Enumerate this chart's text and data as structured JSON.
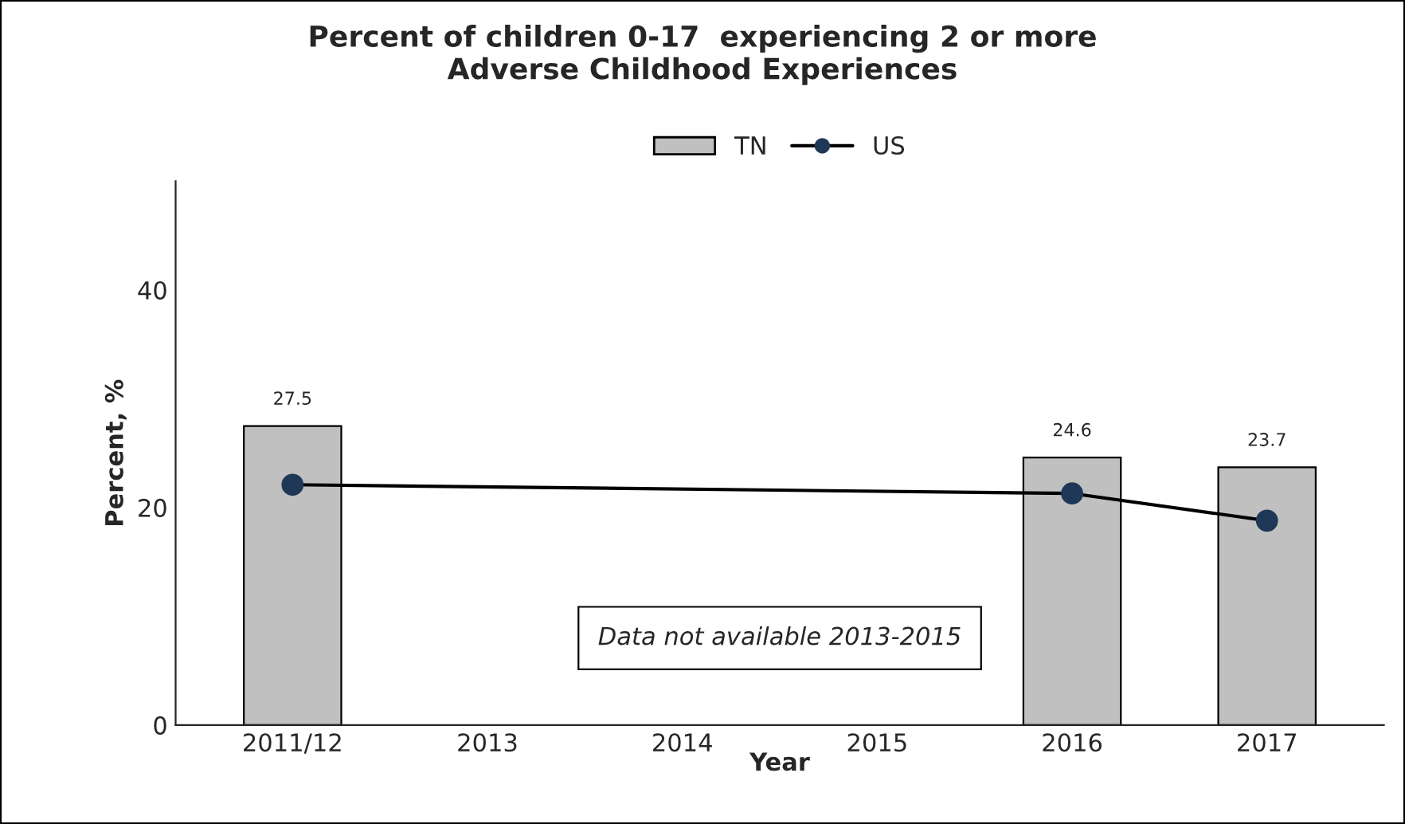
{
  "chart_data": {
    "type": "bar",
    "title": "Percent of children 0-17  experiencing 2 or more\nAdverse Childhood Experiences",
    "categories": [
      "2011/12",
      "2013",
      "2014",
      "2015",
      "2016",
      "2017"
    ],
    "series": [
      {
        "name": "TN",
        "color": "#c0c0c0",
        "values": [
          27.5,
          null,
          null,
          null,
          24.6,
          23.7
        ],
        "value_labels": [
          "27.5",
          null,
          null,
          null,
          "24.6",
          "23.7"
        ]
      },
      {
        "name": "US",
        "type": "line",
        "color": "#1f3857",
        "marker": "circle",
        "values": [
          22.1,
          null,
          null,
          null,
          21.3,
          18.8
        ]
      }
    ],
    "xlabel": "Year",
    "ylabel": "Percent, %",
    "ylim": [
      0,
      50
    ],
    "yticks": [
      0,
      20,
      40
    ],
    "grid": false,
    "legend": "top",
    "annotations": [
      "Data not available 2013-2015"
    ]
  }
}
